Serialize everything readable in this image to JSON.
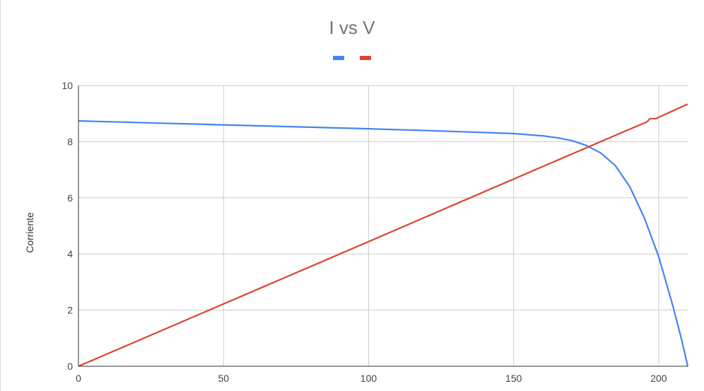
{
  "chart_data": {
    "type": "line",
    "title": "I vs V",
    "xlabel": "",
    "ylabel": "Corriente",
    "xlim": [
      0,
      210
    ],
    "ylim": [
      0,
      10
    ],
    "x_ticks": [
      "0",
      "50",
      "100",
      "150",
      "200"
    ],
    "y_ticks": [
      "0",
      "2",
      "4",
      "6",
      "8",
      "10"
    ],
    "x_tick_values": [
      0,
      50,
      100,
      150,
      200
    ],
    "y_tick_values": [
      0,
      2,
      4,
      6,
      8,
      10
    ],
    "grid": true,
    "legend": "top-center",
    "series": [
      {
        "color": "#4285F4",
        "points": [
          [
            0,
            8.74
          ],
          [
            25,
            8.67
          ],
          [
            50,
            8.6
          ],
          [
            75,
            8.53
          ],
          [
            100,
            8.46
          ],
          [
            125,
            8.38
          ],
          [
            150,
            8.29
          ],
          [
            160,
            8.21
          ],
          [
            165,
            8.14
          ],
          [
            170,
            8.04
          ],
          [
            175,
            7.87
          ],
          [
            180,
            7.6
          ],
          [
            185,
            7.15
          ],
          [
            190,
            6.4
          ],
          [
            195,
            5.3
          ],
          [
            200,
            3.9
          ],
          [
            205,
            2.1
          ],
          [
            208,
            0.9
          ],
          [
            210,
            0.0
          ]
        ]
      },
      {
        "color": "#DB4437",
        "points": [
          [
            0,
            0.0
          ],
          [
            50,
            2.22
          ],
          [
            100,
            4.44
          ],
          [
            150,
            6.67
          ],
          [
            175,
            7.78
          ],
          [
            196,
            8.71
          ],
          [
            197,
            8.82
          ],
          [
            199,
            8.82
          ],
          [
            210,
            9.34
          ]
        ]
      }
    ]
  }
}
